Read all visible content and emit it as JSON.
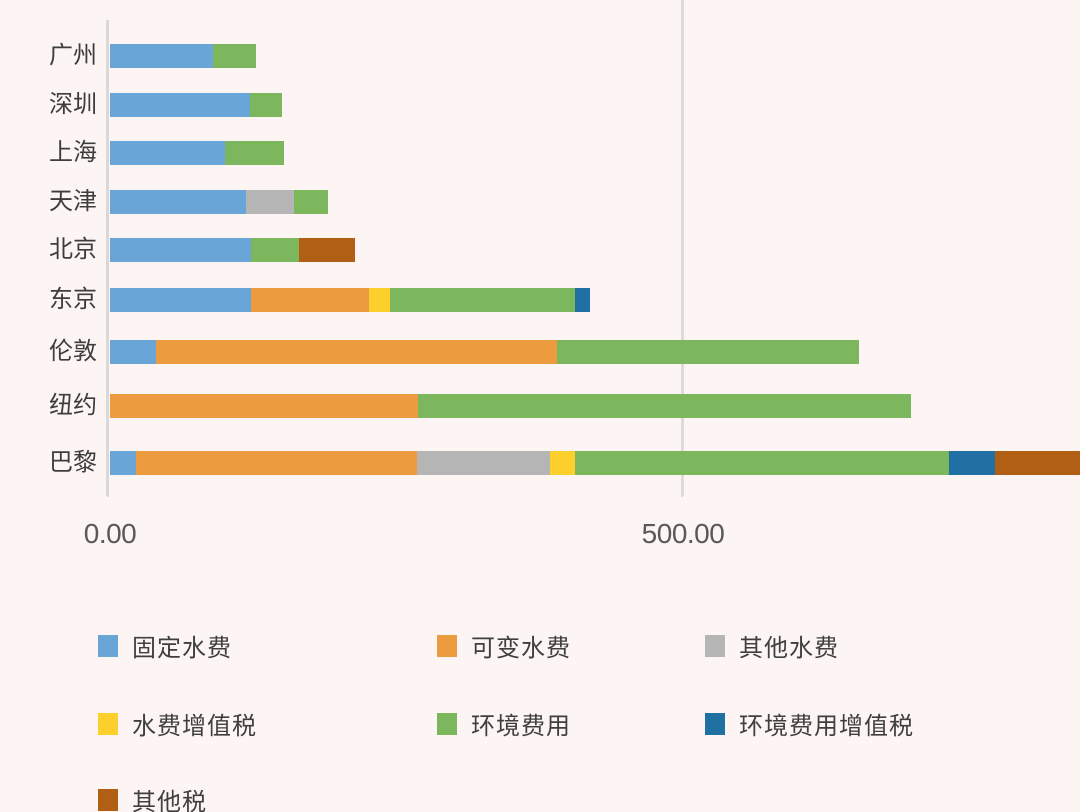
{
  "background_color": "#fcf5f3",
  "axis": {
    "line_color": "#d9d9d9",
    "gridline_color": "#dedcda",
    "tick_color": "#d9d9d9",
    "label_color": "#595959"
  },
  "chart_data": {
    "type": "bar",
    "orientation": "horizontal",
    "stacked": true,
    "grid": "single vertical gridline at 500",
    "legend_position": "bottom",
    "title": "",
    "xlabel": "",
    "ylabel": "",
    "xlim": [
      0,
      846
    ],
    "x_ticks": [
      {
        "label": "0.00",
        "value": 0
      },
      {
        "label": "500.00",
        "value": 500
      }
    ],
    "categories": [
      "广州",
      "深圳",
      "上海",
      "天津",
      "北京",
      "东京",
      "伦敦",
      "纽约",
      "巴黎"
    ],
    "series": [
      {
        "name": "固定水费",
        "color": "#6aa5d8",
        "values": [
          90,
          122,
          100,
          119,
          123,
          123,
          40,
          0,
          23
        ]
      },
      {
        "name": "可变水费",
        "color": "#ec9b3e",
        "values": [
          0,
          0,
          0,
          0,
          0,
          103,
          350,
          269,
          245
        ]
      },
      {
        "name": "其他水费",
        "color": "#b5b5b5",
        "values": [
          0,
          0,
          0,
          42,
          0,
          0,
          0,
          0,
          116
        ]
      },
      {
        "name": "水费增值税",
        "color": "#fccf2c",
        "values": [
          0,
          0,
          0,
          0,
          0,
          18,
          0,
          0,
          22
        ]
      },
      {
        "name": "环境费用",
        "color": "#7cb75e",
        "values": [
          37,
          28,
          52,
          29,
          42,
          162,
          264,
          430,
          326
        ]
      },
      {
        "name": "环境费用增值税",
        "color": "#2070a4",
        "values": [
          0,
          0,
          0,
          0,
          0,
          13,
          0,
          0,
          40
        ]
      },
      {
        "name": "其他税",
        "color": "#b25f16",
        "values": [
          0,
          0,
          0,
          0,
          49,
          0,
          0,
          0,
          85
        ]
      }
    ],
    "note": "巴黎 bar is clipped at the right edge of the image"
  },
  "legend": {
    "items": [
      {
        "label": "固定水费",
        "color": "#6aa5d8"
      },
      {
        "label": "可变水费",
        "color": "#ec9b3e"
      },
      {
        "label": "其他水费",
        "color": "#b5b5b5"
      },
      {
        "label": "水费增值税",
        "color": "#fccf2c"
      },
      {
        "label": "环境费用",
        "color": "#7cb75e"
      },
      {
        "label": "环境费用增值税",
        "color": "#2070a4"
      },
      {
        "label": "其他税",
        "color": "#b25f16"
      }
    ]
  }
}
